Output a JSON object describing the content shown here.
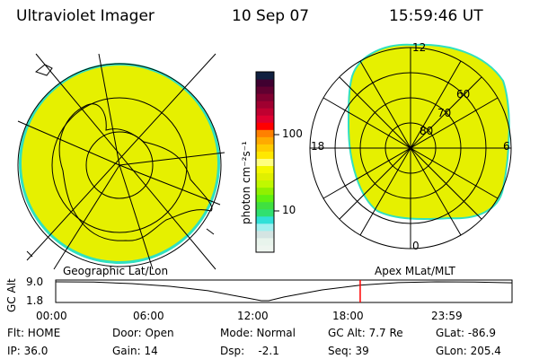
{
  "header": {
    "instrument": "Ultraviolet Imager",
    "date": "10 Sep 07",
    "time": "15:59:46 UT"
  },
  "colorbar": {
    "label": "photon cm⁻²s⁻¹",
    "ticks": [
      "100",
      "10"
    ],
    "colors": [
      "#eef5ef",
      "#e8f4ec",
      "#d4e4e2",
      "#a0f0f0",
      "#30e0d8",
      "#30e070",
      "#40e040",
      "#60f010",
      "#90f000",
      "#c0f800",
      "#e0f000",
      "#f4f800",
      "#ffff80",
      "#ffe800",
      "#ffcc00",
      "#ffaa00",
      "#ff8000",
      "#ff0000",
      "#e00030",
      "#c00030",
      "#a00030",
      "#800030",
      "#600030",
      "#400030",
      "#102040"
    ]
  },
  "left_map": {
    "label": "Geographic Lat/Lon",
    "fill": "#e6f000",
    "edge": "#30e0c0"
  },
  "right_map": {
    "label": "Apex MLat/MLT",
    "lat_labels": [
      "80",
      "70",
      "60"
    ],
    "mlt_labels": {
      "top": "12",
      "left": "18",
      "right": "6",
      "bottom": "0"
    }
  },
  "timeline": {
    "ylabel": "GC Alt",
    "yticks": [
      "9.0",
      "1.8"
    ],
    "xticks": [
      "00:00",
      "06:00",
      "12:00",
      "18:00",
      "23:59"
    ],
    "current_time_hours": 16.0,
    "marker_color": "#ff0000",
    "altitude_re": [
      [
        0,
        9.0
      ],
      [
        2,
        8.9
      ],
      [
        4,
        8.3
      ],
      [
        6,
        7.3
      ],
      [
        8,
        5.6
      ],
      [
        10,
        2.9
      ],
      [
        10.8,
        1.8
      ],
      [
        11.2,
        1.8
      ],
      [
        12,
        3.2
      ],
      [
        14,
        5.9
      ],
      [
        16,
        7.7
      ],
      [
        18,
        8.7
      ],
      [
        20,
        9.0
      ],
      [
        22,
        8.9
      ],
      [
        23.98,
        8.6
      ]
    ]
  },
  "status": {
    "flt": "Flt: HOME",
    "ip": "IP: 36.0",
    "door": "Door: Open",
    "gain": "Gain: 14",
    "mode": "Mode: Normal",
    "dsp": "Dsp:    -2.1",
    "gcalt": "GC Alt: 7.7 Re",
    "seq": "Seq: 39",
    "glat": "GLat: -86.9",
    "glon": "GLon: 205.4"
  }
}
